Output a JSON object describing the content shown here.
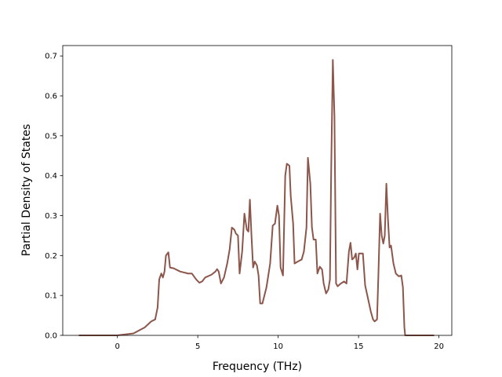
{
  "chart_data": {
    "type": "line",
    "xlabel": "Frequency (THz)",
    "ylabel": "Partial Density of States",
    "color": "#8c564b",
    "x": [
      -2.4,
      0,
      1.0,
      1.7,
      2.1,
      2.35,
      2.5,
      2.6,
      2.73,
      2.83,
      2.93,
      3.02,
      3.17,
      3.27,
      3.5,
      3.9,
      4.4,
      4.63,
      4.9,
      5.1,
      5.27,
      5.46,
      5.85,
      6.1,
      6.2,
      6.3,
      6.44,
      6.63,
      6.83,
      6.98,
      7.12,
      7.27,
      7.37,
      7.5,
      7.6,
      7.76,
      7.9,
      8.05,
      8.15,
      8.24,
      8.34,
      8.44,
      8.54,
      8.68,
      8.78,
      8.88,
      9.02,
      9.27,
      9.5,
      9.66,
      9.8,
      9.95,
      10.05,
      10.15,
      10.3,
      10.44,
      10.54,
      10.7,
      10.78,
      10.93,
      11.02,
      11.22,
      11.46,
      11.6,
      11.76,
      11.85,
      12.0,
      12.1,
      12.2,
      12.34,
      12.44,
      12.59,
      12.73,
      12.83,
      12.98,
      13.12,
      13.22,
      13.3,
      13.4,
      13.5,
      13.6,
      13.7,
      13.9,
      14.1,
      14.25,
      14.4,
      14.5,
      14.6,
      14.73,
      14.83,
      14.93,
      15.02,
      15.27,
      15.41,
      15.6,
      15.76,
      15.9,
      16.0,
      16.15,
      16.24,
      16.34,
      16.44,
      16.54,
      16.63,
      16.73,
      16.83,
      16.93,
      17.02,
      17.17,
      17.32,
      17.5,
      17.66,
      17.76,
      17.85,
      17.9,
      19.7
    ],
    "values": [
      0,
      0,
      0.005,
      0.02,
      0.035,
      0.04,
      0.07,
      0.14,
      0.155,
      0.145,
      0.16,
      0.2,
      0.208,
      0.17,
      0.168,
      0.16,
      0.155,
      0.155,
      0.14,
      0.132,
      0.135,
      0.145,
      0.152,
      0.16,
      0.166,
      0.16,
      0.13,
      0.145,
      0.18,
      0.215,
      0.27,
      0.265,
      0.255,
      0.25,
      0.155,
      0.21,
      0.305,
      0.265,
      0.26,
      0.34,
      0.25,
      0.17,
      0.185,
      0.175,
      0.15,
      0.08,
      0.08,
      0.12,
      0.18,
      0.275,
      0.28,
      0.325,
      0.3,
      0.17,
      0.15,
      0.4,
      0.43,
      0.425,
      0.35,
      0.28,
      0.18,
      0.185,
      0.19,
      0.21,
      0.27,
      0.445,
      0.38,
      0.27,
      0.24,
      0.24,
      0.155,
      0.172,
      0.165,
      0.13,
      0.105,
      0.115,
      0.14,
      0.42,
      0.69,
      0.55,
      0.13,
      0.123,
      0.13,
      0.135,
      0.13,
      0.21,
      0.232,
      0.19,
      0.195,
      0.205,
      0.165,
      0.205,
      0.205,
      0.125,
      0.09,
      0.06,
      0.04,
      0.035,
      0.04,
      0.16,
      0.305,
      0.25,
      0.23,
      0.25,
      0.38,
      0.29,
      0.22,
      0.225,
      0.18,
      0.155,
      0.148,
      0.15,
      0.12,
      0.02,
      0,
      0
    ],
    "xlim": [
      -3.4,
      20.8
    ],
    "xticks": [
      0,
      5,
      10,
      15,
      20
    ],
    "ylim": [
      0,
      0.726
    ],
    "yticks": [
      {
        "value": 0,
        "label": "0.0"
      },
      0.1,
      0.2,
      0.3,
      0.4,
      0.5,
      0.6,
      0.7
    ]
  }
}
